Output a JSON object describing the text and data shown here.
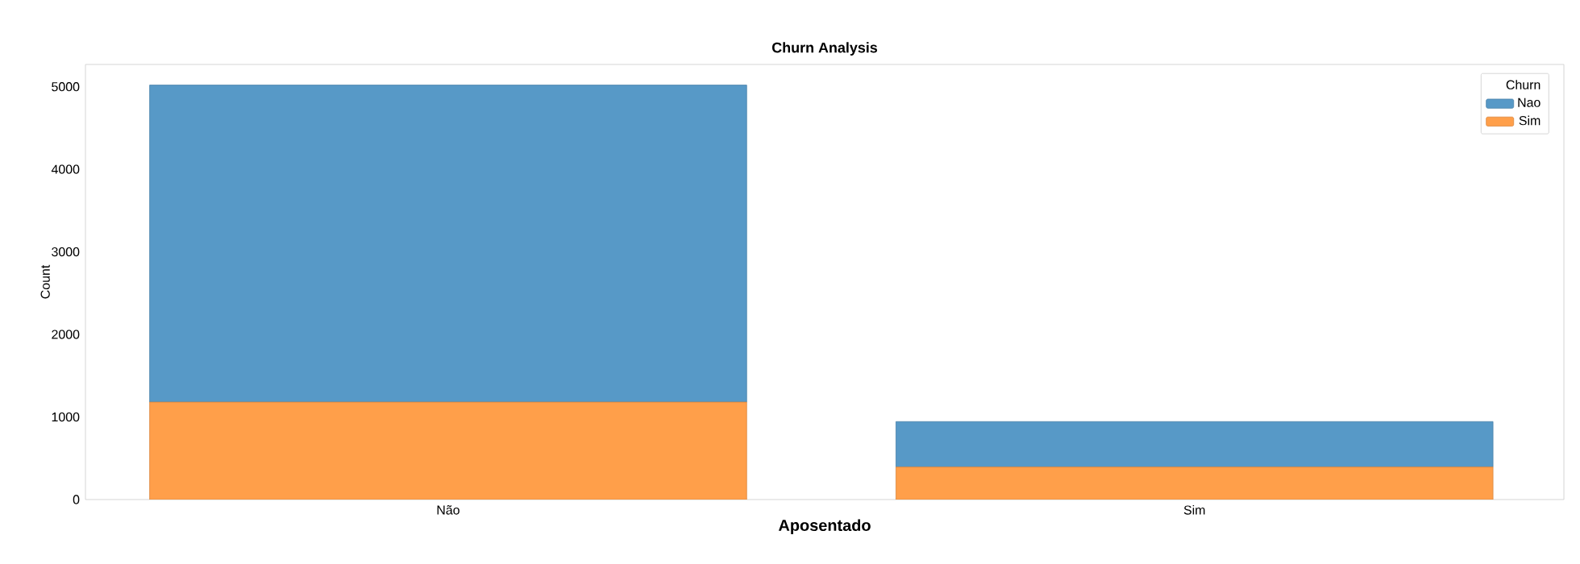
{
  "chart_data": {
    "type": "bar",
    "title": "Churn Analysis",
    "xlabel": "Aposentado",
    "ylabel": "Count",
    "legend_title": "Churn",
    "categories": [
      "Não",
      "Sim"
    ],
    "series": [
      {
        "name": "Sim",
        "color": "#ff9f4a",
        "values": [
          1180,
          394
        ]
      },
      {
        "name": "Nao",
        "color": "#5799c7",
        "values": [
          3840,
          550
        ]
      }
    ],
    "stacked": true,
    "ylim": [
      0,
      5270
    ],
    "yticks": [
      0,
      1000,
      2000,
      3000,
      4000,
      5000
    ],
    "grid": false,
    "legend": "top right"
  }
}
